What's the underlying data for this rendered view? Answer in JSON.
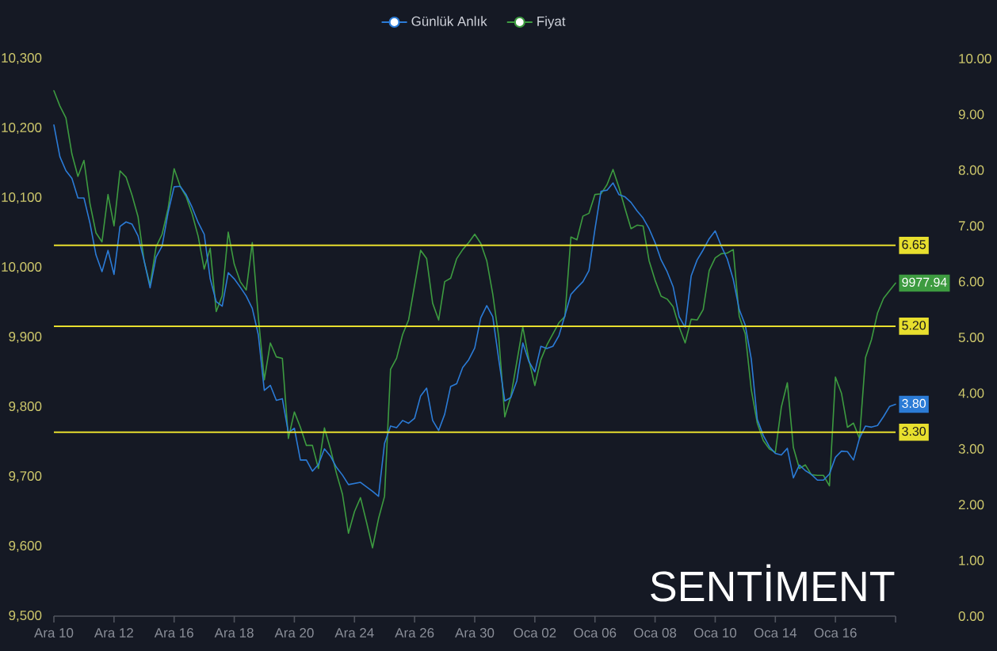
{
  "chart_data": {
    "type": "line",
    "categories": [
      "Ara 10",
      null,
      null,
      null,
      null,
      null,
      null,
      null,
      null,
      null,
      "Ara 12",
      null,
      null,
      null,
      null,
      null,
      null,
      null,
      null,
      null,
      "Ara 16",
      null,
      null,
      null,
      null,
      null,
      null,
      null,
      null,
      null,
      "Ara 18",
      null,
      null,
      null,
      null,
      null,
      null,
      null,
      null,
      null,
      "Ara 20",
      null,
      null,
      null,
      null,
      null,
      null,
      null,
      null,
      null,
      "Ara 24",
      null,
      null,
      null,
      null,
      null,
      null,
      null,
      null,
      null,
      "Ara 26",
      null,
      null,
      null,
      null,
      null,
      null,
      null,
      null,
      null,
      "Ara 30",
      null,
      null,
      null,
      null,
      null,
      null,
      null,
      null,
      null,
      "Oca 02",
      null,
      null,
      null,
      null,
      null,
      null,
      null,
      null,
      null,
      "Oca 06",
      null,
      null,
      null,
      null,
      null,
      null,
      null,
      null,
      null,
      "Oca 08",
      null,
      null,
      null,
      null,
      null,
      null,
      null,
      null,
      null,
      "Oca 10",
      null,
      null,
      null,
      null,
      null,
      null,
      null,
      null,
      null,
      "Oca 14",
      null,
      null,
      null,
      null,
      null,
      null,
      null,
      null,
      null,
      "Oca 16",
      null,
      null,
      null,
      null,
      null,
      null,
      null,
      null,
      null,
      null
    ],
    "series": [
      {
        "name": "Günlük Anlık",
        "color": "#2b7bd6",
        "axis": "y2",
        "values": [
          8.81,
          8.24,
          7.99,
          7.85,
          7.5,
          7.5,
          7.05,
          6.48,
          6.18,
          6.56,
          6.13,
          6.99,
          7.07,
          7.03,
          6.82,
          6.38,
          5.89,
          6.44,
          6.64,
          7.24,
          7.7,
          7.71,
          7.56,
          7.33,
          7.06,
          6.85,
          6.05,
          5.64,
          5.56,
          6.16,
          6.05,
          5.9,
          5.74,
          5.52,
          5.05,
          4.05,
          4.14,
          3.87,
          3.9,
          3.29,
          3.37,
          2.8,
          2.8,
          2.6,
          2.72,
          3.0,
          2.87,
          2.67,
          2.53,
          2.36,
          2.38,
          2.4,
          2.32,
          2.24,
          2.15,
          3.1,
          3.41,
          3.38,
          3.51,
          3.46,
          3.55,
          3.95,
          4.09,
          3.51,
          3.33,
          3.62,
          4.12,
          4.17,
          4.46,
          4.6,
          4.81,
          5.35,
          5.57,
          5.37,
          4.6,
          3.86,
          3.92,
          4.22,
          4.9,
          4.57,
          4.38,
          4.84,
          4.8,
          4.84,
          5.03,
          5.39,
          5.77,
          5.89,
          6.0,
          6.2,
          6.94,
          7.62,
          7.64,
          7.77,
          7.56,
          7.52,
          7.42,
          7.27,
          7.14,
          6.95,
          6.7,
          6.39,
          6.18,
          5.91,
          5.37,
          5.18,
          6.1,
          6.39,
          6.57,
          6.77,
          6.91,
          6.64,
          6.41,
          6.04,
          5.5,
          5.22,
          4.61,
          3.53,
          3.24,
          3.04,
          2.92,
          2.89,
          3.01,
          2.48,
          2.71,
          2.61,
          2.54,
          2.44,
          2.44,
          2.55,
          2.85,
          2.96,
          2.95,
          2.8,
          3.19,
          3.41,
          3.39,
          3.42,
          3.58,
          3.76,
          3.8
        ],
        "value_labels": [
          null,
          null,
          null,
          null,
          null,
          null,
          null,
          null,
          null,
          null,
          null,
          null,
          null,
          null,
          null,
          null,
          null,
          null,
          null,
          null,
          null,
          null,
          null,
          null,
          null,
          null,
          null,
          null,
          null,
          null,
          null,
          null,
          null,
          null,
          null,
          null,
          null,
          null,
          null,
          null,
          null,
          null,
          null,
          null,
          null,
          null,
          null,
          null,
          null,
          null,
          null,
          null,
          null,
          null,
          null,
          null,
          null,
          null,
          null,
          null,
          null,
          null,
          null,
          null,
          null,
          null,
          null,
          null,
          null,
          null,
          null,
          null,
          null,
          null,
          null,
          null,
          null,
          null,
          null,
          null,
          null,
          null,
          null,
          null,
          null,
          null,
          null,
          null,
          null,
          null,
          null,
          null,
          null,
          null,
          null,
          null,
          null,
          null,
          null,
          null,
          null,
          null,
          null,
          null,
          null,
          null,
          null,
          null,
          null,
          null,
          null,
          null,
          null,
          null,
          null,
          null,
          null,
          null,
          null,
          null,
          null,
          null,
          null,
          null,
          null,
          null,
          null,
          null,
          null,
          null,
          null,
          null,
          null,
          null,
          null,
          null,
          null,
          null,
          null,
          null,
          "3.80"
        ]
      },
      {
        "name": "Fiyat",
        "color": "#3d9b40",
        "values": [
          10254,
          10232,
          10215,
          10163,
          10131,
          10154,
          10092,
          10050,
          10037,
          10105,
          10060,
          10139,
          10130,
          10104,
          10073,
          10010,
          9975,
          10030,
          10048,
          10085,
          10142,
          10117,
          10102,
          10077,
          10045,
          9998,
          10028,
          9937,
          9960,
          10051,
          10005,
          9980,
          9968,
          10036,
          9930,
          9839,
          9892,
          9872,
          9870,
          9755,
          9793,
          9771,
          9745,
          9745,
          9712,
          9770,
          9740,
          9705,
          9675,
          9619,
          9650,
          9670,
          9635,
          9598,
          9640,
          9672,
          9854,
          9870,
          9904,
          9925,
          9975,
          10025,
          10013,
          9949,
          9925,
          9980,
          9985,
          10013,
          10026,
          10036,
          10048,
          10035,
          10010,
          9962,
          9900,
          9786,
          9815,
          9865,
          9915,
          9868,
          9831,
          9868,
          9889,
          9905,
          9921,
          9930,
          10044,
          10040,
          10074,
          10078,
          10105,
          10106,
          10119,
          10141,
          10115,
          10085,
          10056,
          10061,
          10060,
          10010,
          9982,
          9959,
          9955,
          9944,
          9915,
          9892,
          9926,
          9925,
          9940,
          9996,
          10014,
          10020,
          10021,
          10026,
          9930,
          9905,
          9825,
          9777,
          9752,
          9740,
          9735,
          9800,
          9835,
          9742,
          9712,
          9717,
          9703,
          9702,
          9702,
          9687,
          9843,
          9820,
          9771,
          9777,
          9755,
          9871,
          9897,
          9935,
          9956,
          9967,
          9977.94
        ],
        "value_labels": [
          null,
          null,
          null,
          null,
          null,
          null,
          null,
          null,
          null,
          null,
          null,
          null,
          null,
          null,
          null,
          null,
          null,
          null,
          null,
          null,
          null,
          null,
          null,
          null,
          null,
          null,
          null,
          null,
          null,
          null,
          null,
          null,
          null,
          null,
          null,
          null,
          null,
          null,
          null,
          null,
          null,
          null,
          null,
          null,
          null,
          null,
          null,
          null,
          null,
          null,
          null,
          null,
          null,
          null,
          null,
          null,
          null,
          null,
          null,
          null,
          null,
          null,
          null,
          null,
          null,
          null,
          null,
          null,
          null,
          null,
          null,
          null,
          null,
          null,
          null,
          null,
          null,
          null,
          null,
          null,
          null,
          null,
          null,
          null,
          null,
          null,
          null,
          null,
          null,
          null,
          null,
          null,
          null,
          null,
          null,
          null,
          null,
          null,
          null,
          null,
          null,
          null,
          null,
          null,
          null,
          null,
          null,
          null,
          null,
          null,
          null,
          null,
          null,
          null,
          null,
          null,
          null,
          null,
          null,
          null,
          null,
          null,
          null,
          null,
          null,
          null,
          null,
          null,
          null,
          null,
          null,
          null,
          null,
          null,
          null,
          null,
          null,
          null,
          null,
          null,
          "9977.94"
        ]
      }
    ],
    "ylim": [
      9500,
      10300
    ],
    "yticks": [
      {
        "value": 9500,
        "label": "9,500"
      },
      {
        "value": 9600,
        "label": "9,600"
      },
      {
        "value": 9700,
        "label": "9,700"
      },
      {
        "value": 9800,
        "label": "9,800"
      },
      {
        "value": 9900,
        "label": "9,900"
      },
      {
        "value": 10000,
        "label": "10,000"
      },
      {
        "value": 10100,
        "label": "10,100"
      },
      {
        "value": 10200,
        "label": "10,200"
      },
      {
        "value": 10300,
        "label": "10,300"
      }
    ],
    "y2lim": [
      0,
      10
    ],
    "y2ticks": [
      {
        "value": 0,
        "label": "0.00"
      },
      {
        "value": 1,
        "label": "1.00"
      },
      {
        "value": 2,
        "label": "2.00"
      },
      {
        "value": 3,
        "label": "3.00"
      },
      {
        "value": 4,
        "label": "4.00"
      },
      {
        "value": 5,
        "label": "5.00"
      },
      {
        "value": 6,
        "label": "6.00"
      },
      {
        "value": 7,
        "label": "7.00"
      },
      {
        "value": 8,
        "label": "8.00"
      },
      {
        "value": 9,
        "label": "9.00"
      },
      {
        "value": 10,
        "label": "10.00"
      }
    ],
    "ref_lines": [
      {
        "axis": "y2",
        "value": 6.65,
        "label": "6.65",
        "color": "#e8df2e"
      },
      {
        "axis": "y2",
        "value": 5.2,
        "label": "5.20",
        "color": "#e8df2e"
      },
      {
        "axis": "y2",
        "value": 3.3,
        "label": "3.30",
        "color": "#e8df2e"
      }
    ],
    "legend": "top",
    "annotations": [
      "SENTİMENT"
    ]
  }
}
